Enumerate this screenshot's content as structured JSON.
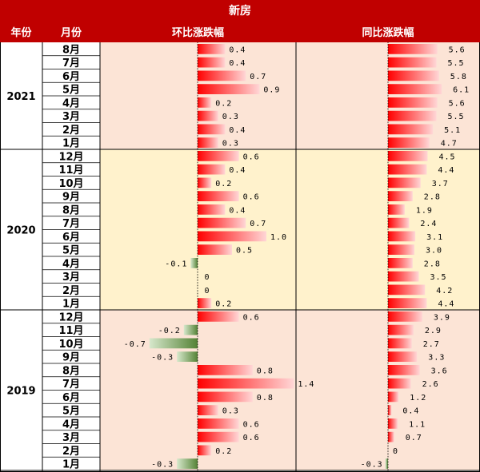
{
  "title": "新房",
  "headers": {
    "year": "年份",
    "month": "月份",
    "mom": "环比涨跌幅",
    "yoy": "同比涨跌幅"
  },
  "colors": {
    "header_bg": "#c00000",
    "header_text": "#ffffff",
    "band_2021": "#fce4d6",
    "band_2020": "#fff2cc",
    "band_2019": "#fce4d6",
    "positive_bar": "#ff0000",
    "negative_bar": "#548235"
  },
  "chart_data": {
    "type": "table",
    "columns": [
      "年份",
      "月份",
      "环比涨跌幅",
      "同比涨跌幅"
    ],
    "groups": [
      {
        "year": "2021",
        "rows": [
          {
            "month": "8月",
            "mom": 0.4,
            "yoy": 5.6
          },
          {
            "month": "7月",
            "mom": 0.4,
            "yoy": 5.5
          },
          {
            "month": "6月",
            "mom": 0.7,
            "yoy": 5.8
          },
          {
            "month": "5月",
            "mom": 0.9,
            "yoy": 6.1
          },
          {
            "month": "4月",
            "mom": 0.2,
            "yoy": 5.6
          },
          {
            "month": "3月",
            "mom": 0.3,
            "yoy": 5.5
          },
          {
            "month": "2月",
            "mom": 0.4,
            "yoy": 5.1
          },
          {
            "month": "1月",
            "mom": 0.3,
            "yoy": 4.7
          }
        ]
      },
      {
        "year": "2020",
        "rows": [
          {
            "month": "12月",
            "mom": 0.6,
            "yoy": 4.5
          },
          {
            "month": "11月",
            "mom": 0.4,
            "yoy": 4.4
          },
          {
            "month": "10月",
            "mom": 0.2,
            "yoy": 3.7
          },
          {
            "month": "9月",
            "mom": 0.6,
            "yoy": 2.8
          },
          {
            "month": "8月",
            "mom": 0.4,
            "yoy": 1.9
          },
          {
            "month": "7月",
            "mom": 0.7,
            "yoy": 2.4
          },
          {
            "month": "6月",
            "mom": 1.0,
            "yoy": 3.1
          },
          {
            "month": "5月",
            "mom": 0.5,
            "yoy": 3.0
          },
          {
            "month": "4月",
            "mom": -0.1,
            "yoy": 2.8
          },
          {
            "month": "3月",
            "mom": 0,
            "yoy": 3.5
          },
          {
            "month": "2月",
            "mom": 0,
            "yoy": 4.2
          },
          {
            "month": "1月",
            "mom": 0.2,
            "yoy": 4.4
          }
        ]
      },
      {
        "year": "2019",
        "rows": [
          {
            "month": "12月",
            "mom": 0.6,
            "yoy": 3.9
          },
          {
            "month": "11月",
            "mom": -0.2,
            "yoy": 2.9
          },
          {
            "month": "10月",
            "mom": -0.7,
            "yoy": 2.7
          },
          {
            "month": "9月",
            "mom": -0.3,
            "yoy": 3.3
          },
          {
            "month": "8月",
            "mom": 0.8,
            "yoy": 3.6
          },
          {
            "month": "7月",
            "mom": 1.4,
            "yoy": 2.6
          },
          {
            "month": "6月",
            "mom": 0.8,
            "yoy": 1.2
          },
          {
            "month": "5月",
            "mom": 0.3,
            "yoy": 0.4
          },
          {
            "month": "4月",
            "mom": 0.6,
            "yoy": 1.1
          },
          {
            "month": "3月",
            "mom": 0.6,
            "yoy": 0.7
          },
          {
            "month": "2月",
            "mom": 0.2,
            "yoy": 0
          },
          {
            "month": "1月",
            "mom": -0.3,
            "yoy": -0.3
          }
        ]
      }
    ],
    "mom_scale": [
      -0.7,
      1.4
    ],
    "yoy_scale": [
      -0.3,
      6.1
    ]
  }
}
